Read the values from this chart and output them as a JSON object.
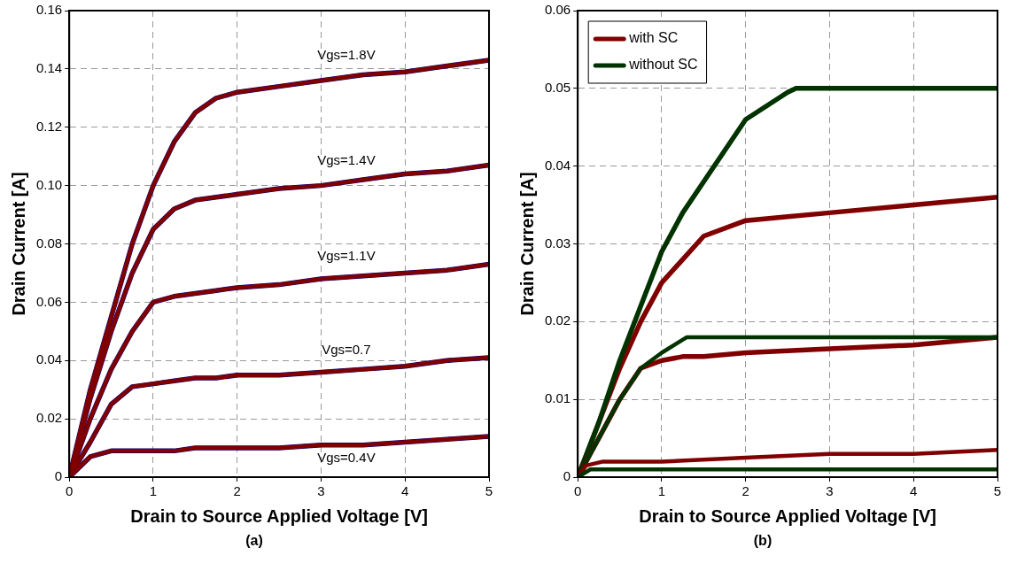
{
  "chart_data": [
    {
      "type": "line",
      "xlabel": "Drain to Source Applied Voltage [V]",
      "ylabel": "Drain Current [A]",
      "x": [
        0,
        0.25,
        0.5,
        0.75,
        1,
        1.25,
        1.5,
        1.75,
        2,
        2.5,
        3,
        3.5,
        4,
        4.5,
        5
      ],
      "xlim": [
        0,
        5
      ],
      "xticks": [
        0,
        1,
        2,
        3,
        4,
        5
      ],
      "ylim": [
        0,
        0.16
      ],
      "yticks": [
        {
          "value": 0,
          "label": "0"
        },
        {
          "value": 0.02,
          "label": "0.02"
        },
        {
          "value": 0.04,
          "label": "0.04"
        },
        {
          "value": 0.06,
          "label": "0.06"
        },
        {
          "value": 0.08,
          "label": "0.08"
        },
        {
          "value": 0.1,
          "label": "0.10"
        },
        {
          "value": 0.12,
          "label": "0.12"
        },
        {
          "value": 0.14,
          "label": "0.14"
        },
        {
          "value": 0.16,
          "label": "0.16"
        }
      ],
      "grid": true,
      "legend": false,
      "marker": "none",
      "line_style": "solid",
      "series": [
        {
          "color": "#000080",
          "values": [
            0,
            0.03,
            0.055,
            0.08,
            0.1,
            0.115,
            0.125,
            0.13,
            0.132,
            0.134,
            0.136,
            0.138,
            0.139,
            0.141,
            0.143
          ]
        },
        {
          "color": "#000080",
          "values": [
            0,
            0.027,
            0.05,
            0.07,
            0.085,
            0.092,
            0.095,
            0.096,
            0.097,
            0.099,
            0.1,
            0.102,
            0.104,
            0.105,
            0.107
          ]
        },
        {
          "color": "#000080",
          "values": [
            0,
            0.02,
            0.037,
            0.05,
            0.06,
            0.062,
            0.063,
            0.064,
            0.065,
            0.066,
            0.068,
            0.069,
            0.07,
            0.071,
            0.073
          ]
        },
        {
          "color": "#000080",
          "values": [
            0,
            0.012,
            0.025,
            0.031,
            0.032,
            0.033,
            0.034,
            0.034,
            0.035,
            0.035,
            0.036,
            0.037,
            0.038,
            0.04,
            0.041
          ]
        },
        {
          "color": "#000080",
          "values": [
            0,
            0.007,
            0.009,
            0.009,
            0.009,
            0.009,
            0.01,
            0.01,
            0.01,
            0.01,
            0.011,
            0.011,
            0.012,
            0.013,
            0.014
          ]
        },
        {
          "name": "Vgs=1.8V",
          "color": "#800000",
          "values": [
            0,
            0.03,
            0.055,
            0.08,
            0.1,
            0.115,
            0.125,
            0.13,
            0.132,
            0.134,
            0.136,
            0.138,
            0.139,
            0.141,
            0.143
          ]
        },
        {
          "name": "Vgs=1.4V",
          "color": "#800000",
          "values": [
            0,
            0.027,
            0.05,
            0.07,
            0.085,
            0.092,
            0.095,
            0.096,
            0.097,
            0.099,
            0.1,
            0.102,
            0.104,
            0.105,
            0.107
          ]
        },
        {
          "name": "Vgs=1.1V",
          "color": "#800000",
          "values": [
            0,
            0.02,
            0.037,
            0.05,
            0.06,
            0.062,
            0.063,
            0.064,
            0.065,
            0.066,
            0.068,
            0.069,
            0.07,
            0.071,
            0.073
          ]
        },
        {
          "name": "Vgs=0.7",
          "color": "#800000",
          "values": [
            0,
            0.012,
            0.025,
            0.031,
            0.032,
            0.033,
            0.034,
            0.034,
            0.035,
            0.035,
            0.036,
            0.037,
            0.038,
            0.04,
            0.041
          ]
        },
        {
          "name": "Vgs=0.4V",
          "color": "#800000",
          "values": [
            0,
            0.007,
            0.009,
            0.009,
            0.009,
            0.009,
            0.01,
            0.01,
            0.01,
            0.01,
            0.011,
            0.011,
            0.012,
            0.013,
            0.014
          ]
        }
      ],
      "annotations": [
        "(a)"
      ]
    },
    {
      "type": "line",
      "xlabel": "Drain to Source Applied Voltage [V]",
      "ylabel": "Drain Current [A]",
      "xlim": [
        0,
        5
      ],
      "xticks": [
        0,
        1,
        2,
        3,
        4,
        5
      ],
      "ylim": [
        0,
        0.06
      ],
      "yticks": [
        0,
        0.01,
        0.02,
        0.03,
        0.04,
        0.05,
        0.06
      ],
      "grid": true,
      "legend": "top left",
      "marker": "none",
      "line_style": "solid",
      "series": [
        {
          "name": "with SC",
          "color": "#800000",
          "x": [
            0,
            0.25,
            0.5,
            0.75,
            1,
            1.25,
            1.5,
            2,
            2.5,
            3,
            4,
            5
          ],
          "values": [
            0,
            0.007,
            0.014,
            0.02,
            0.025,
            0.028,
            0.031,
            0.033,
            0.0335,
            0.034,
            0.035,
            0.036
          ]
        },
        {
          "name": "without SC",
          "color": "#003300",
          "x": [
            0,
            0.25,
            0.5,
            0.75,
            1,
            1.25,
            1.5,
            2,
            2.5,
            2.6,
            3,
            4,
            5
          ],
          "values": [
            0,
            0.007,
            0.015,
            0.022,
            0.029,
            0.034,
            0.038,
            0.046,
            0.0495,
            0.05,
            0.05,
            0.05,
            0.05
          ]
        },
        {
          "color": "#800000",
          "x": [
            0,
            0.25,
            0.5,
            0.75,
            1,
            1.25,
            1.5,
            2,
            3,
            4,
            5
          ],
          "values": [
            0,
            0.005,
            0.01,
            0.014,
            0.015,
            0.0155,
            0.0155,
            0.016,
            0.0165,
            0.017,
            0.018
          ]
        },
        {
          "color": "#003300",
          "x": [
            0,
            0.25,
            0.5,
            0.75,
            1,
            1.3,
            2,
            3,
            4,
            5
          ],
          "values": [
            0,
            0.005,
            0.01,
            0.014,
            0.016,
            0.018,
            0.018,
            0.018,
            0.018,
            0.018
          ]
        },
        {
          "color": "#800000",
          "x": [
            0,
            0.1,
            0.3,
            1,
            2,
            3,
            4,
            5
          ],
          "values": [
            0,
            0.0015,
            0.002,
            0.002,
            0.0025,
            0.003,
            0.003,
            0.0035
          ]
        },
        {
          "color": "#003300",
          "x": [
            0,
            0.15,
            5
          ],
          "values": [
            0,
            0.001,
            0.001
          ]
        }
      ],
      "annotations": [
        "(b)"
      ]
    }
  ]
}
